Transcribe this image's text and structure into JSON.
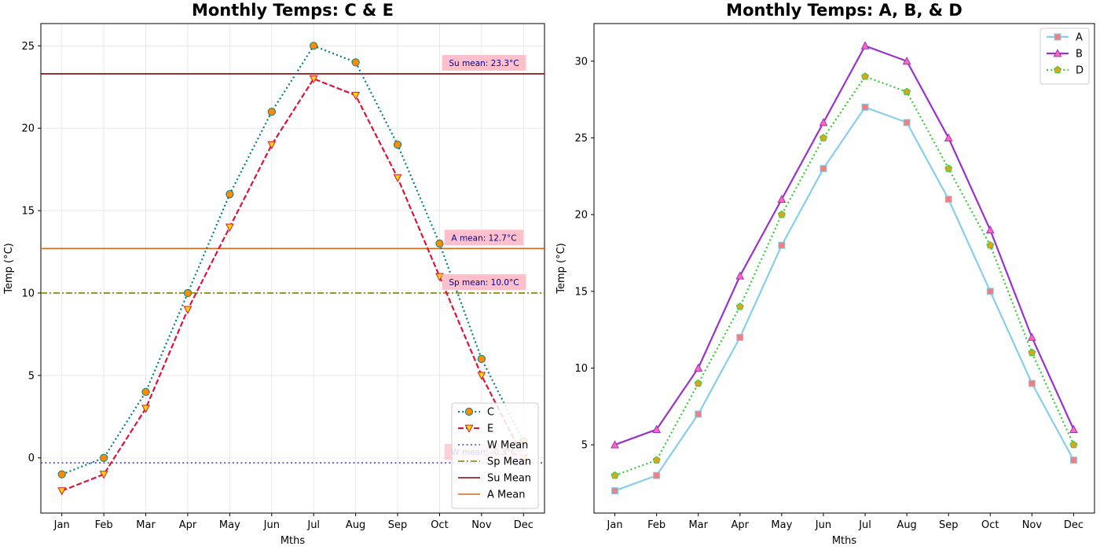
{
  "chart_data": [
    {
      "type": "line",
      "title": "Monthly Temps: C & E",
      "xlabel": "Mths",
      "ylabel": "Temp (°C)",
      "categories": [
        "Jan",
        "Feb",
        "Mar",
        "Apr",
        "May",
        "Jun",
        "Jul",
        "Aug",
        "Sep",
        "Oct",
        "Nov",
        "Dec"
      ],
      "ylim": [
        -3.35,
        26.35
      ],
      "yticks": [
        0,
        5,
        10,
        15,
        20,
        25
      ],
      "grid": true,
      "legend_position": "lower-right",
      "series": [
        {
          "name": "C",
          "values": [
            -1,
            0,
            4,
            10,
            16,
            21,
            25,
            24,
            19,
            13,
            6,
            1
          ],
          "color": "#008080",
          "marker_color": "#ff8c00",
          "marker": "circle",
          "style": "dotted"
        },
        {
          "name": "E",
          "values": [
            -2,
            -1,
            3,
            9,
            14,
            19,
            23,
            22,
            17,
            11,
            5,
            0
          ],
          "color": "#dc143c",
          "marker_color": "#ffd700",
          "marker": "triangle-down",
          "style": "dashed"
        }
      ],
      "hlines": [
        {
          "name": "W Mean",
          "value": -0.3,
          "color": "#4444cc",
          "style": "dotted",
          "annotation": "W mean: -0.3°C"
        },
        {
          "name": "Sp Mean",
          "value": 10.0,
          "color": "#808000",
          "style": "dashdot",
          "annotation": "Sp mean: 10.0°C"
        },
        {
          "name": "Su Mean",
          "value": 23.3,
          "color": "#8b0000",
          "style": "solid",
          "annotation": "Su mean: 23.3°C"
        },
        {
          "name": "A Mean",
          "value": 12.7,
          "color": "#d2691e",
          "style": "solid",
          "annotation": "A mean: 12.7°C"
        }
      ],
      "annotation_box_color": "#ffc0cb"
    },
    {
      "type": "line",
      "title": "Monthly Temps: A, B, & D",
      "xlabel": "Mths",
      "ylabel": "Temp (°C)",
      "categories": [
        "Jan",
        "Feb",
        "Mar",
        "Apr",
        "May",
        "Jun",
        "Jul",
        "Aug",
        "Sep",
        "Oct",
        "Nov",
        "Dec"
      ],
      "ylim": [
        0.55,
        32.45
      ],
      "yticks": [
        5,
        10,
        15,
        20,
        25,
        30
      ],
      "grid": false,
      "legend_position": "upper-right",
      "series": [
        {
          "name": "A",
          "values": [
            2,
            3,
            7,
            12,
            18,
            23,
            27,
            26,
            21,
            15,
            9,
            4
          ],
          "color": "#87ceeb",
          "marker_color": "#f08080",
          "marker": "square",
          "style": "solid"
        },
        {
          "name": "B",
          "values": [
            5,
            6,
            10,
            16,
            21,
            26,
            31,
            30,
            25,
            19,
            12,
            6
          ],
          "color": "#9932cc",
          "marker_color": "#ff69b4",
          "marker": "triangle-up",
          "style": "solid"
        },
        {
          "name": "D",
          "values": [
            3,
            4,
            9,
            14,
            20,
            25,
            29,
            28,
            23,
            18,
            11,
            5
          ],
          "color": "#32cd32",
          "marker_color": "#daa520",
          "marker": "pentagon",
          "style": "dotted"
        }
      ]
    }
  ]
}
